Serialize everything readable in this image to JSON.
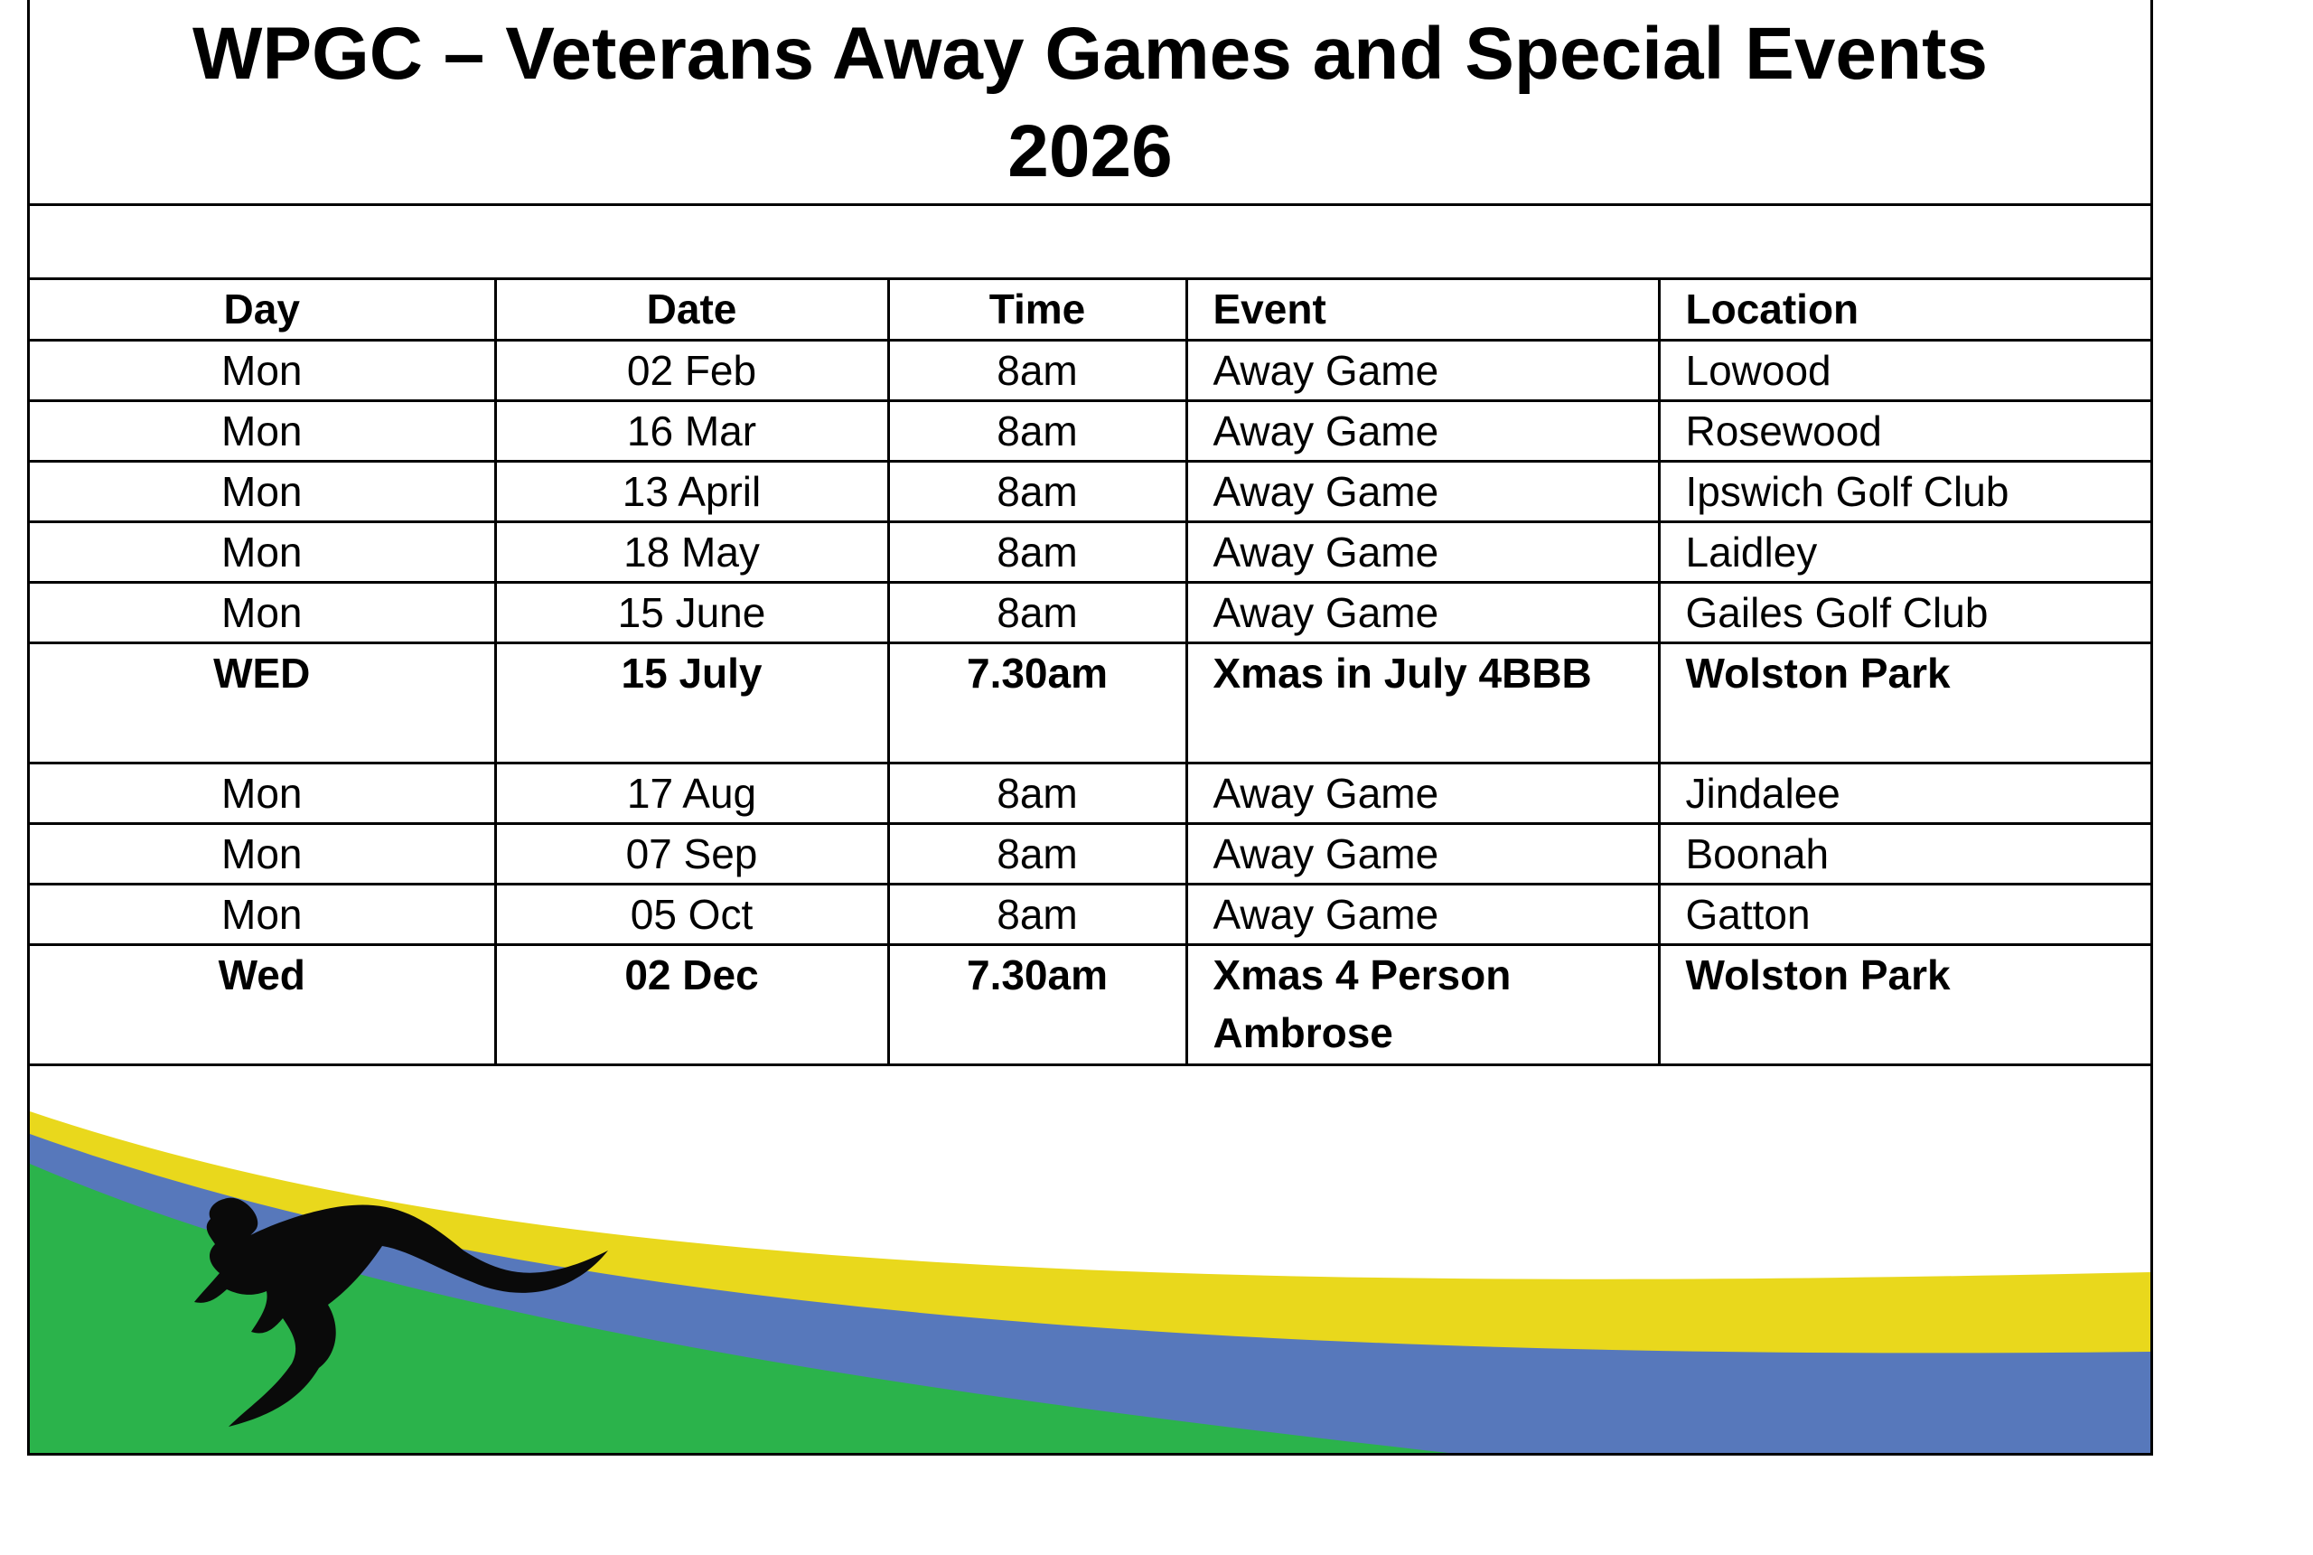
{
  "title": {
    "line1": "WPGC – Veterans Away Games and Special Events",
    "line2": "2026"
  },
  "table": {
    "headers": [
      "Day",
      "Date",
      "Time",
      "Event",
      "Location"
    ],
    "rows": [
      {
        "day": "Mon",
        "date": "02 Feb",
        "time": "8am",
        "event": "Away Game",
        "location": "Lowood",
        "bold": false
      },
      {
        "day": "Mon",
        "date": "16 Mar",
        "time": "8am",
        "event": "Away Game",
        "location": "Rosewood",
        "bold": false
      },
      {
        "day": "Mon",
        "date": "13 April",
        "time": "8am",
        "event": "Away Game",
        "location": "Ipswich Golf Club",
        "bold": false
      },
      {
        "day": "Mon",
        "date": "18 May",
        "time": "8am",
        "event": "Away Game",
        "location": "Laidley",
        "bold": false
      },
      {
        "day": "Mon",
        "date": "15 June",
        "time": "8am",
        "event": "Away Game",
        "location": "Gailes Golf Club",
        "bold": false
      },
      {
        "day": "WED",
        "date": "15 July",
        "time": "7.30am",
        "event": "Xmas in July 4BBB",
        "location": "Wolston Park",
        "bold": true
      },
      {
        "day": "Mon",
        "date": "17 Aug",
        "time": "8am",
        "event": "Away Game",
        "location": "Jindalee",
        "bold": false
      },
      {
        "day": "Mon",
        "date": "07 Sep",
        "time": "8am",
        "event": "Away Game",
        "location": "Boonah",
        "bold": false
      },
      {
        "day": "Mon",
        "date": "05 Oct",
        "time": "8am",
        "event": "Away Game",
        "location": "Gatton",
        "bold": false
      },
      {
        "day": "Wed",
        "date": "02 Dec",
        "time": "7.30am",
        "event": "Xmas 4 Person Ambrose",
        "location": "Wolston Park",
        "bold": true
      }
    ]
  },
  "banner": {
    "colors": {
      "yellow": "#e9d81c",
      "blue": "#5778bb",
      "green": "#2bb34b",
      "kangaroo": "#0a0a0a"
    },
    "icon": "kangaroo-icon"
  }
}
